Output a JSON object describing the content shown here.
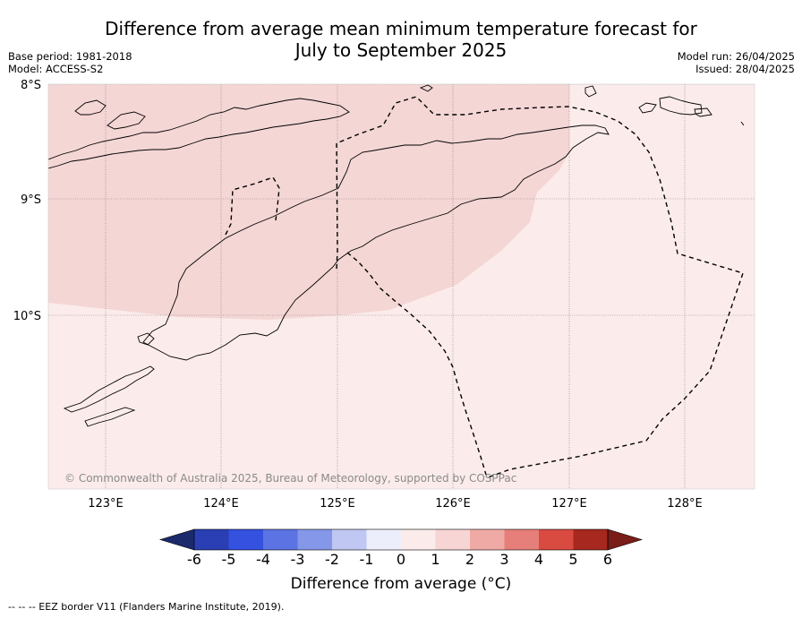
{
  "title_line1": "Difference from average mean minimum temperature forecast for",
  "title_line2": "July to September 2025",
  "base_period": "Base period: 1981-2018",
  "model": "Model: ACCESS-S2",
  "model_run": "Model run: 26/04/2025",
  "issued": "Issued: 28/04/2025",
  "lat_labels": [
    "8°S",
    "9°S",
    "10°S"
  ],
  "lon_labels": [
    "123°E",
    "124°E",
    "125°E",
    "126°E",
    "127°E",
    "128°E"
  ],
  "copyright": "© Commonwealth of Australia 2025, Bureau of Meteorology, supported by COSPPac",
  "colorbar": {
    "ticks": [
      "-6",
      "-5",
      "-4",
      "-3",
      "-2",
      "-1",
      "0",
      "1",
      "2",
      "3",
      "4",
      "5",
      "6"
    ],
    "colors": [
      "#1b2a6b",
      "#2a3fb3",
      "#3451e0",
      "#5b73e3",
      "#8597e8",
      "#bfc7f2",
      "#eceefb",
      "#fbeceb",
      "#f6d5d4",
      "#efaaa6",
      "#e67f79",
      "#d94a40",
      "#a6281f",
      "#7a1c17"
    ],
    "label": "Difference from average (°C)"
  },
  "legend_footer": "-- -- -- EEZ border V11 (Flanders Marine Institute, 2019).",
  "fill_colors": {
    "background": "#fbeceb",
    "warm_zone": "#f4d6d5"
  }
}
